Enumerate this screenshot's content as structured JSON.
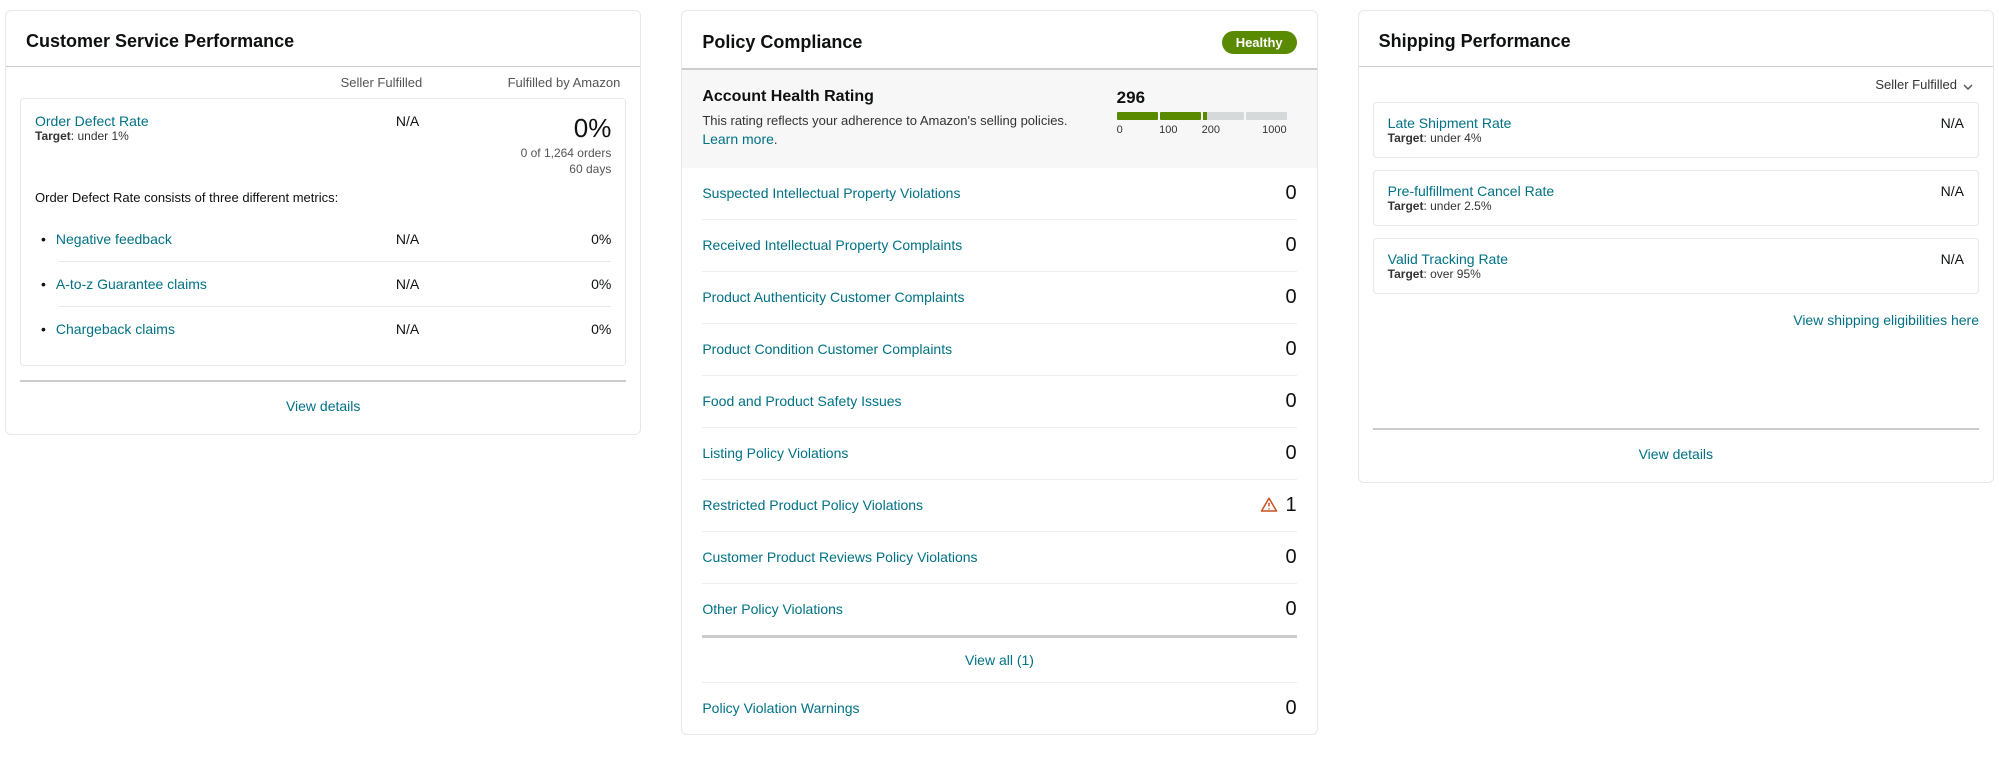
{
  "customerService": {
    "title": "Customer Service Performance",
    "col2": "Seller Fulfilled",
    "col3": "Fulfilled by Amazon",
    "odr": {
      "label": "Order Defect Rate",
      "targetLabel": "Target",
      "target": ": under 1%",
      "na": "N/A",
      "pct": "0%",
      "sub1": "0 of 1,264 orders",
      "sub2": "60 days"
    },
    "explain": "Order Defect Rate consists of three different metrics:",
    "metrics": [
      {
        "label": "Negative feedback",
        "v1": "N/A",
        "v2": "0%"
      },
      {
        "label": "A-to-z Guarantee claims",
        "v1": "N/A",
        "v2": "0%"
      },
      {
        "label": "Chargeback claims",
        "v1": "N/A",
        "v2": "0%"
      }
    ],
    "viewDetails": "View details"
  },
  "policy": {
    "title": "Policy Compliance",
    "badgeText": "Healthy",
    "badgeColor": "#5a8a00",
    "health": {
      "title": "Account Health Rating",
      "sub": "This rating reflects your adherence to Amazon's selling policies. ",
      "learn": "Learn more",
      "dot": ".",
      "score": "296",
      "ticks": {
        "t0": "0",
        "t1": "100",
        "t2": "200",
        "t3": "1000"
      },
      "segColors": {
        "filled": "#5a8a00",
        "partial": "#5a8a00",
        "empty": "#d5d9d9"
      }
    },
    "rows": [
      {
        "label": "Suspected Intellectual Property Violations",
        "count": "0",
        "warn": false
      },
      {
        "label": "Received Intellectual Property Complaints",
        "count": "0",
        "warn": false
      },
      {
        "label": "Product Authenticity Customer Complaints",
        "count": "0",
        "warn": false
      },
      {
        "label": "Product Condition Customer Complaints",
        "count": "0",
        "warn": false
      },
      {
        "label": "Food and Product Safety Issues",
        "count": "0",
        "warn": false
      },
      {
        "label": "Listing Policy Violations",
        "count": "0",
        "warn": false
      },
      {
        "label": "Restricted Product Policy Violations",
        "count": "1",
        "warn": true
      },
      {
        "label": "Customer Product Reviews Policy Violations",
        "count": "0",
        "warn": false
      },
      {
        "label": "Other Policy Violations",
        "count": "0",
        "warn": false
      }
    ],
    "viewAll": "View all (1)",
    "warnings": {
      "label": "Policy Violation Warnings",
      "count": "0"
    },
    "warnColor": "#c7511f"
  },
  "shipping": {
    "title": "Shipping Performance",
    "selector": "Seller Fulfilled",
    "cards": [
      {
        "label": "Late Shipment Rate",
        "targetLabel": "Target",
        "target": ": under 4%",
        "value": "N/A"
      },
      {
        "label": "Pre-fulfillment Cancel Rate",
        "targetLabel": "Target",
        "target": ": under 2.5%",
        "value": "N/A"
      },
      {
        "label": "Valid Tracking Rate",
        "targetLabel": "Target",
        "target": ": over 95%",
        "value": "N/A"
      }
    ],
    "eligibilities": "View shipping eligibilities here",
    "viewDetails": "View details"
  }
}
